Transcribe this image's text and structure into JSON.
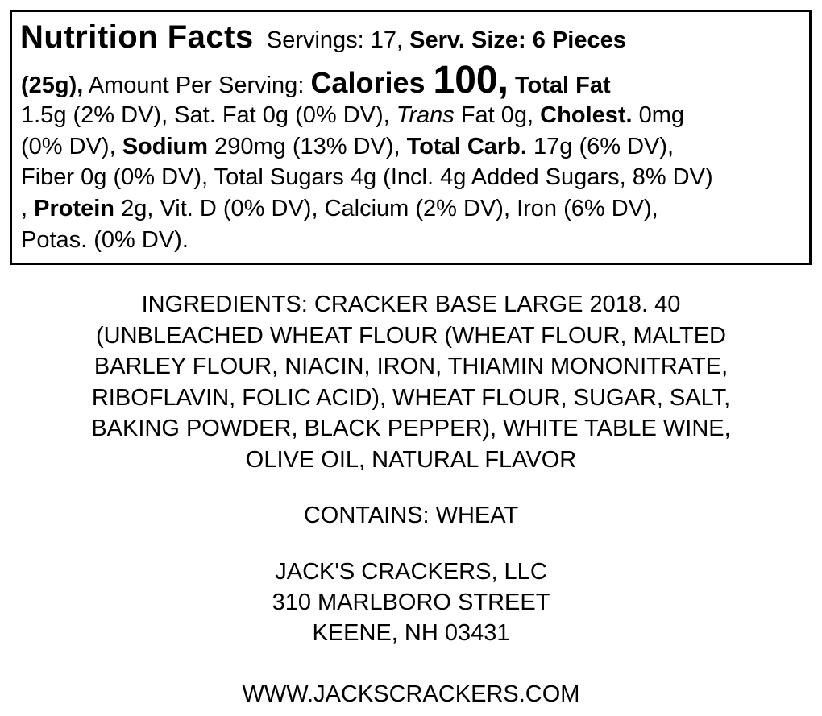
{
  "nutrition": {
    "lines": [
      [
        {
          "t": "Nutrition Facts",
          "s": "title"
        },
        {
          "t": "  Servings: 17, ",
          "s": ""
        },
        {
          "t": "Serv. Size: 6 Pieces",
          "s": "b"
        }
      ],
      [
        {
          "t": "(25g),",
          "s": "b"
        },
        {
          "t": " Amount Per Serving: ",
          "s": ""
        },
        {
          "t": "Calories ",
          "s": "cal"
        },
        {
          "t": "100,",
          "s": "big"
        },
        {
          "t": " Total Fat",
          "s": "b"
        }
      ],
      [
        {
          "t": "1.5g (2% DV), Sat. Fat 0g (0% DV), ",
          "s": ""
        },
        {
          "t": "Trans",
          "s": "i"
        },
        {
          "t": " Fat 0g, ",
          "s": ""
        },
        {
          "t": "Cholest.",
          "s": "b"
        },
        {
          "t": " 0mg",
          "s": ""
        }
      ],
      [
        {
          "t": "(0% DV), ",
          "s": ""
        },
        {
          "t": "Sodium",
          "s": "b"
        },
        {
          "t": " 290mg (13% DV), ",
          "s": ""
        },
        {
          "t": "Total Carb.",
          "s": "b"
        },
        {
          "t": " 17g (6% DV),",
          "s": ""
        }
      ],
      [
        {
          "t": "Fiber 0g (0% DV), Total Sugars 4g (Incl. 4g Added Sugars, 8% DV)",
          "s": ""
        }
      ],
      [
        {
          "t": ", ",
          "s": ""
        },
        {
          "t": "Protein",
          "s": "b"
        },
        {
          "t": " 2g, Vit. D (0% DV), Calcium (2% DV), Iron (6% DV),",
          "s": ""
        }
      ],
      [
        {
          "t": "Potas. (0% DV).",
          "s": ""
        }
      ]
    ]
  },
  "ingredients": [
    "INGREDIENTS: CRACKER BASE LARGE 2018. 40",
    "(UNBLEACHED WHEAT FLOUR (WHEAT FLOUR, MALTED",
    "BARLEY FLOUR, NIACIN, IRON, THIAMIN MONONITRATE,",
    "RIBOFLAVIN, FOLIC ACID), WHEAT FLOUR, SUGAR, SALT,",
    "BAKING POWDER, BLACK PEPPER), WHITE TABLE WINE,",
    "OLIVE OIL, NATURAL FLAVOR"
  ],
  "contains": "CONTAINS: WHEAT",
  "company": {
    "name": "JACK'S CRACKERS, LLC",
    "street": "310 MARLBORO STREET",
    "city": "KEENE, NH 03431",
    "website": "WWW.JACKSCRACKERS.COM"
  }
}
